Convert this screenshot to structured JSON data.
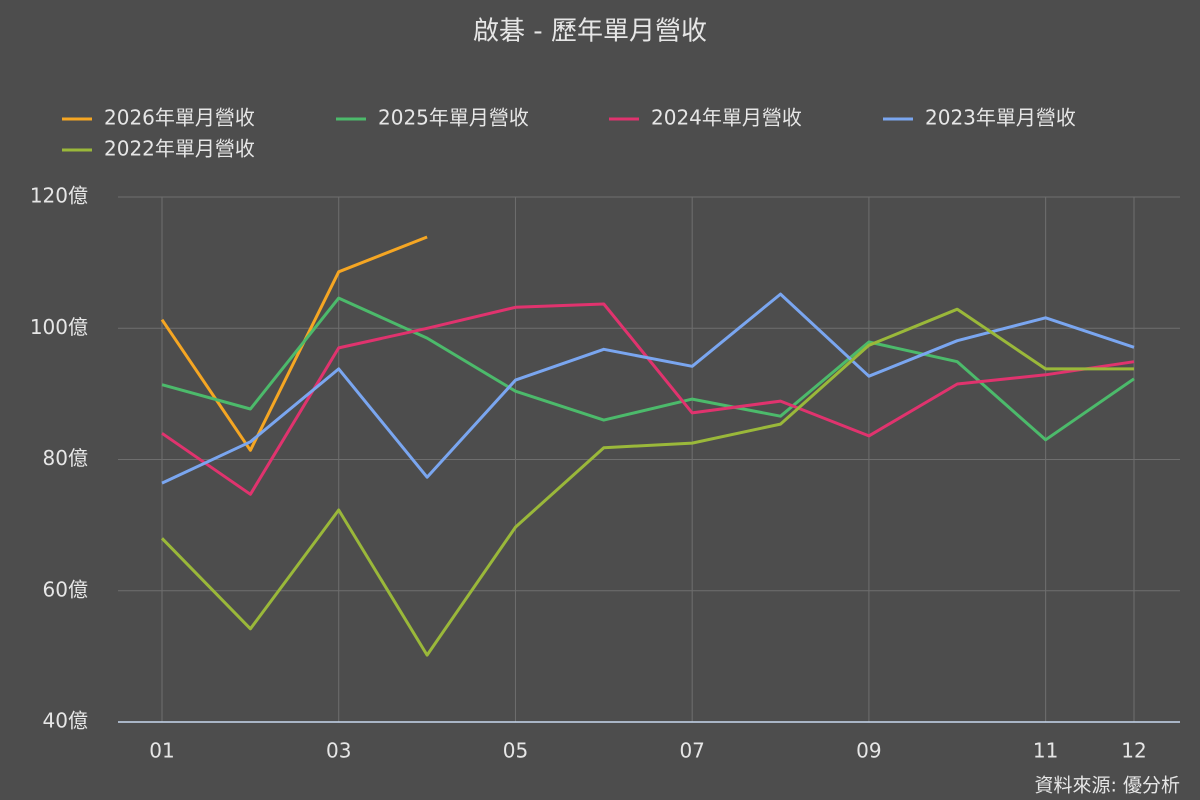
{
  "chart_data": {
    "type": "line",
    "title": "啟碁 - 歷年單月營收",
    "categories": [
      "01",
      null,
      "03",
      null,
      "05",
      null,
      "07",
      null,
      "09",
      null,
      "11",
      "12"
    ],
    "series": [
      {
        "name": "2026年單月營收",
        "color": "#f5a623",
        "values": [
          101.3,
          81.4,
          108.6,
          113.9,
          null,
          null,
          null,
          null,
          null,
          null,
          null,
          null
        ]
      },
      {
        "name": "2025年單月營收",
        "color": "#4cba6b",
        "values": [
          91.4,
          87.7,
          104.6,
          98.5,
          90.4,
          86.0,
          89.2,
          86.6,
          97.9,
          94.9,
          83.0,
          92.3
        ]
      },
      {
        "name": "2024年單月營收",
        "color": "#e0336e",
        "values": [
          84.0,
          74.7,
          97.0,
          100.0,
          103.2,
          103.7,
          87.1,
          88.9,
          83.6,
          91.5,
          92.9,
          94.9
        ]
      },
      {
        "name": "2023年單月營收",
        "color": "#7aa6f0",
        "values": [
          76.4,
          82.7,
          93.8,
          77.3,
          92.1,
          96.8,
          94.2,
          105.2,
          92.7,
          98.1,
          101.6,
          97.1
        ]
      },
      {
        "name": "2022年單月營收",
        "color": "#9ab83a",
        "values": [
          68.0,
          54.2,
          72.3,
          50.2,
          69.7,
          81.8,
          82.5,
          85.4,
          97.4,
          102.9,
          93.8,
          93.8
        ]
      }
    ],
    "ylim": [
      40,
      120
    ],
    "yticks": [
      {
        "value": 40,
        "label": "40億"
      },
      {
        "value": 60,
        "label": "60億"
      },
      {
        "value": 80,
        "label": "80億"
      },
      {
        "value": 100,
        "label": "100億"
      },
      {
        "value": 120,
        "label": "120億"
      }
    ],
    "grid": true,
    "source": "資料來源: 優分析"
  }
}
